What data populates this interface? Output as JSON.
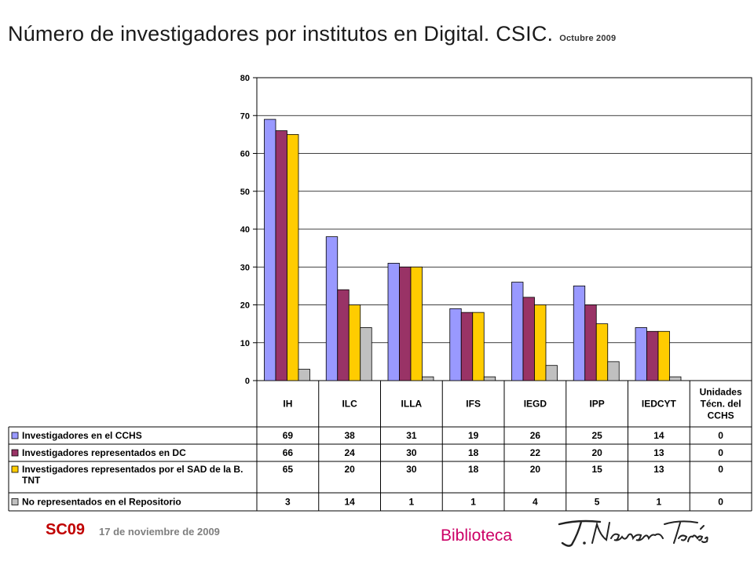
{
  "page": {
    "title": "Número  de investigadores por institutos en Digital. CSIC.",
    "subtitle": "Octubre 2009",
    "footer_event": "SC09",
    "footer_date": "17 de noviembre de 2009",
    "footer_department": "Biblioteca"
  },
  "signature_text": "T. Navarro Tomás",
  "chart_data": {
    "type": "bar",
    "title": "Número  de investigadores por institutos en Digital. CSIC.",
    "subtitle": "Octubre 2009",
    "categories": [
      "IH",
      "ILC",
      "ILLA",
      "IFS",
      "IEGD",
      "IPP",
      "IEDCYT",
      "Unidades\nTécn. del\nCCHS"
    ],
    "series": [
      {
        "name": "Investigadores en el CCHS",
        "color": "#9999ff",
        "values": [
          69,
          38,
          31,
          19,
          26,
          25,
          14,
          0
        ]
      },
      {
        "name": "Investigadores representados en DC",
        "color": "#993366",
        "values": [
          66,
          24,
          30,
          18,
          22,
          20,
          13,
          0
        ]
      },
      {
        "name": "Investigadores representados por el SAD de la B.\nTNT",
        "color": "#ffcc00",
        "values": [
          65,
          20,
          30,
          18,
          20,
          15,
          13,
          0
        ]
      },
      {
        "name": "No representados en el Repositorio",
        "color": "#c0c0c0",
        "values": [
          3,
          14,
          1,
          1,
          4,
          5,
          1,
          0
        ]
      }
    ],
    "yticks": [
      "0",
      "10",
      "20",
      "30",
      "40",
      "50",
      "60",
      "70",
      "80"
    ],
    "ylim": [
      0,
      80
    ],
    "grid": true,
    "legend": "data-table"
  }
}
